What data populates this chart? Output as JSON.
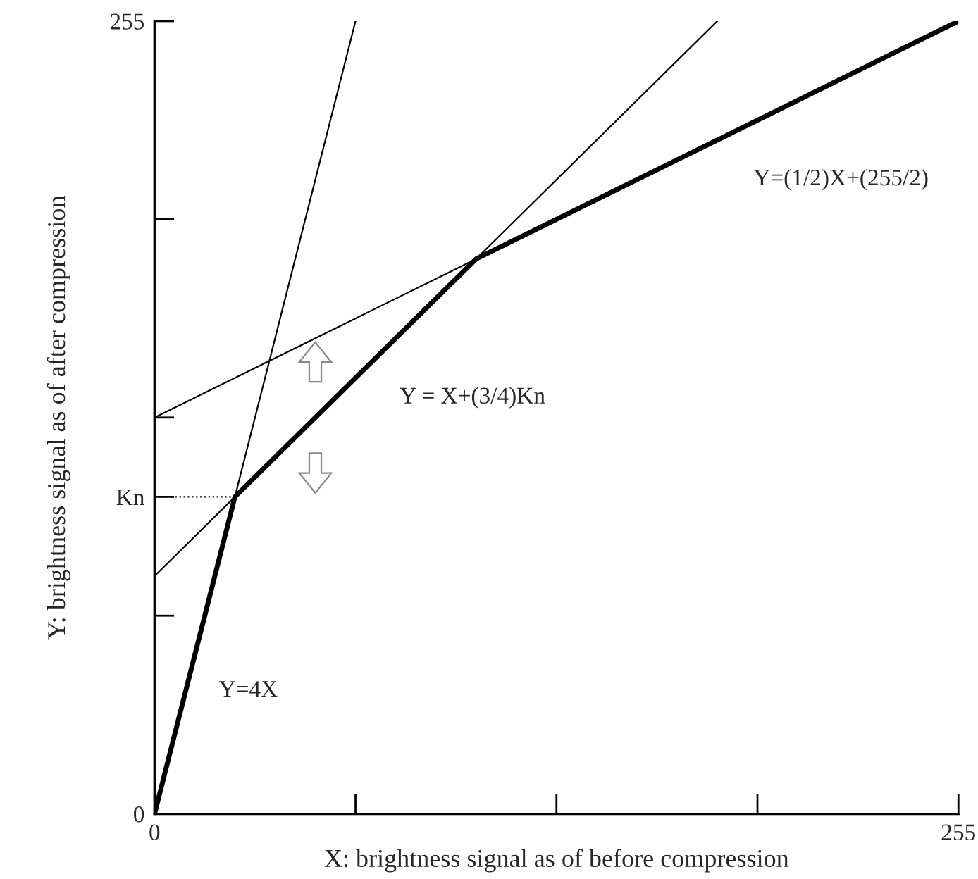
{
  "chart_data": {
    "type": "line",
    "xlabel": "X: brightness signal as of before compression",
    "ylabel": "Y: brightness signal as of after compression",
    "xlim": [
      0,
      255
    ],
    "ylim": [
      0,
      255
    ],
    "xticks": [
      0,
      {
        "value": 63.75,
        "label": null
      },
      {
        "value": 127.5,
        "label": null
      },
      {
        "value": 191.25,
        "label": null
      },
      255
    ],
    "yticks": [
      0,
      {
        "value": 63.75,
        "label": null
      },
      {
        "value": 102,
        "label": "Kn"
      },
      {
        "value": 127.5,
        "label": null
      },
      {
        "value": 191.25,
        "label": null
      },
      255
    ],
    "series": [
      {
        "color": "#000000",
        "x": [
          0,
          63.75
        ],
        "values": [
          0,
          255
        ],
        "line_style": "solid"
      },
      {
        "color": "#000000",
        "x": [
          0,
          178.5
        ],
        "values": [
          76.5,
          255
        ],
        "line_style": "solid"
      },
      {
        "color": "#000000",
        "x": [
          0,
          102
        ],
        "values": [
          127.5,
          178.5
        ],
        "line_style": "solid"
      },
      {
        "color": "#000000",
        "x": [
          0,
          25.5
        ],
        "values": [
          102,
          102
        ],
        "line_style": "dotted"
      },
      {
        "color": "#000000",
        "x": [
          0,
          25.5,
          102,
          255
        ],
        "values": [
          0,
          102,
          178.5,
          255
        ],
        "line_style": "solid"
      }
    ],
    "annotations": [
      "Y=(1/2)X+(255/2)",
      "Y = X+(3/4)Kn",
      "Y=4X"
    ],
    "grid": false,
    "legend": false
  }
}
